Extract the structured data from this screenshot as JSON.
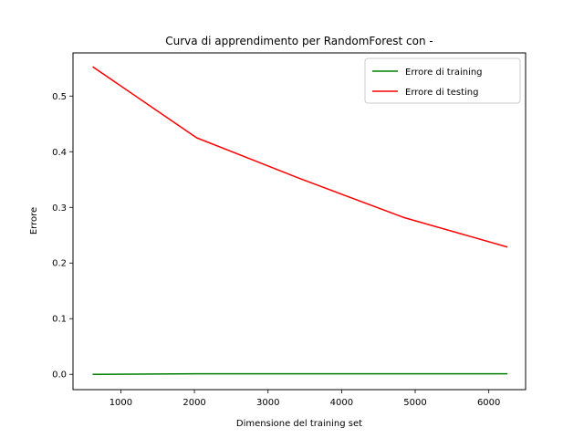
{
  "chart_data": {
    "type": "line",
    "title": "Curva di apprendimento per RandomForest con -",
    "xlabel": "Dimensione del training set",
    "ylabel": "Errore",
    "xlim": [
      350,
      6500
    ],
    "ylim": [
      -0.0275,
      0.5775
    ],
    "xticks": [
      1000,
      2000,
      3000,
      4000,
      5000,
      6000
    ],
    "yticks": [
      0.0,
      0.1,
      0.2,
      0.3,
      0.4,
      0.5
    ],
    "grid": false,
    "legend_position": "top-right",
    "series": [
      {
        "name": "Errore di training",
        "color": "#008000",
        "x": [
          625,
          2030,
          3430,
          4840,
          6245
        ],
        "y": [
          0.0,
          0.001,
          0.001,
          0.001,
          0.001
        ]
      },
      {
        "name": "Errore di testing",
        "color": "#ff0000",
        "x": [
          625,
          2030,
          3430,
          4840,
          6245
        ],
        "y": [
          0.552,
          0.425,
          0.352,
          0.282,
          0.229
        ]
      }
    ]
  }
}
